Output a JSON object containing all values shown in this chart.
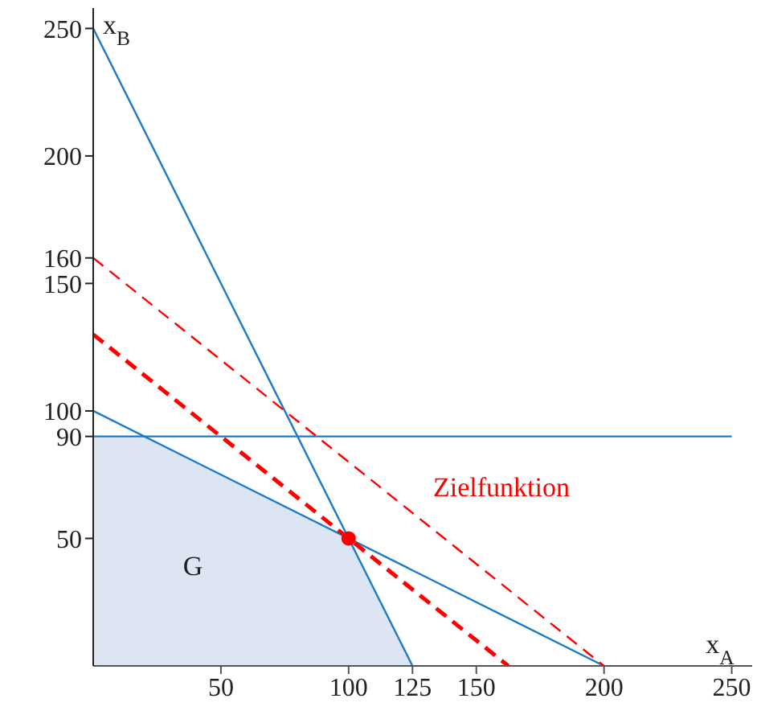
{
  "chart_data": {
    "type": "line",
    "xlabel": "x$_{A}$",
    "ylabel": "x$_{B}$",
    "xlim": [
      0,
      258
    ],
    "ylim": [
      0,
      258
    ],
    "xticks": [
      50,
      100,
      125,
      150,
      200,
      250
    ],
    "yticks": [
      50,
      90,
      100,
      150,
      160,
      200,
      250
    ],
    "marker": "none",
    "series": [
      {
        "type": "area",
        "color": "#dde5f3",
        "x": [
          0,
          20,
          100,
          125
        ],
        "values": [
          90,
          90,
          50,
          0
        ]
      },
      {
        "color": "#1a7acc",
        "x": [
          0,
          125
        ],
        "values": [
          250,
          0
        ]
      },
      {
        "color": "#1a7acc",
        "x": [
          0,
          200
        ],
        "values": [
          100,
          0
        ]
      },
      {
        "color": "#1a7acc",
        "x": [
          0,
          250
        ],
        "values": [
          90,
          90
        ]
      },
      {
        "color": "#ff0000",
        "line_style": "dashed",
        "x": [
          0,
          162.5
        ],
        "values": [
          130,
          0
        ]
      },
      {
        "color": "#ff0000",
        "line_style": "dashed",
        "x": [
          0,
          200
        ],
        "values": [
          160,
          0
        ]
      },
      {
        "type": "scatter",
        "color": "#ff0000",
        "marker": "circle",
        "x": [
          100
        ],
        "values": [
          50
        ]
      }
    ],
    "annotations": [
      "G",
      "Zielfunktion"
    ]
  }
}
